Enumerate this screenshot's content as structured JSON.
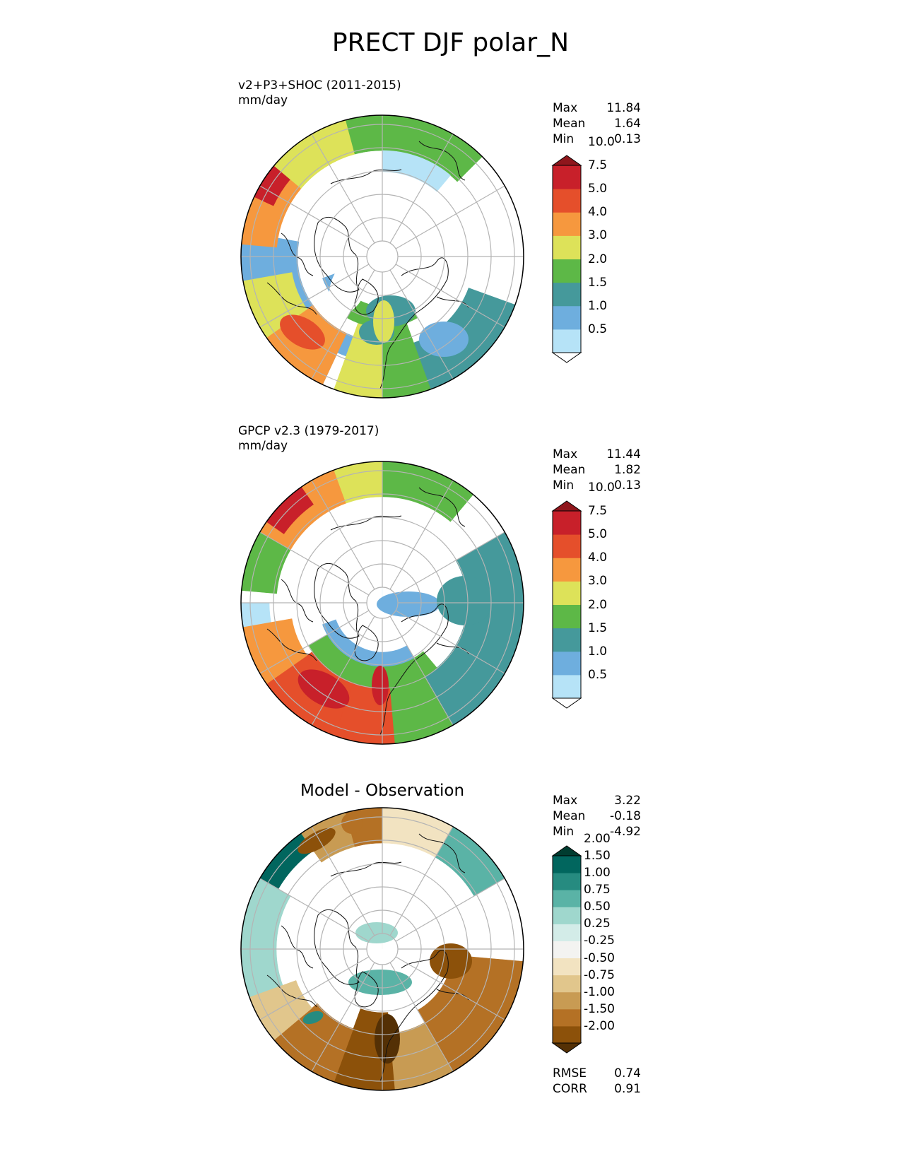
{
  "title": "PRECT DJF polar_N",
  "panels": {
    "model": {
      "label_line1": "v2+P3+SHOC (2011-2015)",
      "label_line2": "mm/day",
      "stats": {
        "max_label": "Max",
        "max": "11.84",
        "mean_label": "Mean",
        "mean": "1.64",
        "min_label": "Min",
        "min": "0.13"
      }
    },
    "obs": {
      "label_line1": "GPCP v2.3 (1979-2017)",
      "label_line2": "mm/day",
      "stats": {
        "max_label": "Max",
        "max": "11.44",
        "mean_label": "Mean",
        "mean": "1.82",
        "min_label": "Min",
        "min": "0.13"
      }
    },
    "diff": {
      "title": "Model - Observation",
      "stats": {
        "max_label": "Max",
        "max": "3.22",
        "mean_label": "Mean",
        "mean": "-0.18",
        "min_label": "Min",
        "min": "-4.92"
      },
      "metrics": {
        "rmse_label": "RMSE",
        "rmse": "0.74",
        "corr_label": "CORR",
        "corr": "0.91"
      }
    }
  },
  "colorbars": {
    "precip": {
      "ticks": [
        "0.5",
        "1.0",
        "1.5",
        "2.0",
        "3.0",
        "4.0",
        "5.0",
        "7.5",
        "10.0"
      ],
      "colors": [
        "#ffffff",
        "#b6e3f7",
        "#6eaede",
        "#45999b",
        "#5db847",
        "#dde259",
        "#f6983e",
        "#e54f2b",
        "#c8202a",
        "#8f161c"
      ]
    },
    "diff": {
      "ticks": [
        "-2.00",
        "-1.50",
        "-1.00",
        "-0.75",
        "-0.50",
        "-0.25",
        "0.25",
        "0.50",
        "0.75",
        "1.00",
        "1.50",
        "2.00"
      ],
      "colors": [
        "#543005",
        "#8c510a",
        "#b47125",
        "#c89b53",
        "#e1c68c",
        "#f2e3c1",
        "#f3f3f1",
        "#d3ece8",
        "#9fd7cd",
        "#5ab3a6",
        "#268b80",
        "#01665e",
        "#003c30"
      ]
    }
  },
  "chart_data": [
    {
      "type": "heatmap",
      "map_projection": "north polar stereographic",
      "title": "v2+P3+SHOC (2011-2015)",
      "units": "mm/day",
      "levels": [
        0.5,
        1.0,
        1.5,
        2.0,
        3.0,
        4.0,
        5.0,
        7.5,
        10.0
      ],
      "max": 11.84,
      "mean": 1.64,
      "min": 0.13
    },
    {
      "type": "heatmap",
      "map_projection": "north polar stereographic",
      "title": "GPCP v2.3 (1979-2017)",
      "units": "mm/day",
      "levels": [
        0.5,
        1.0,
        1.5,
        2.0,
        3.0,
        4.0,
        5.0,
        7.5,
        10.0
      ],
      "max": 11.44,
      "mean": 1.82,
      "min": 0.13
    },
    {
      "type": "heatmap",
      "map_projection": "north polar stereographic",
      "title": "Model - Observation",
      "levels": [
        -2.0,
        -1.5,
        -1.0,
        -0.75,
        -0.5,
        -0.25,
        0.25,
        0.5,
        0.75,
        1.0,
        1.5,
        2.0
      ],
      "max": 3.22,
      "mean": -0.18,
      "min": -4.92,
      "rmse": 0.74,
      "corr": 0.91
    }
  ]
}
